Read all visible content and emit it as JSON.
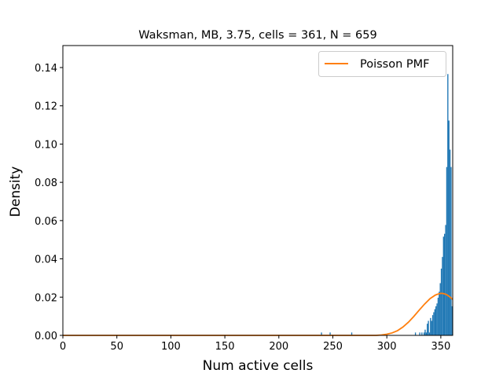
{
  "chart_data": {
    "type": "bar",
    "title": "Waksman, MB, 3.75, cells = 361, N = 659",
    "xlabel": "Num active cells",
    "ylabel": "Density",
    "xlim": [
      0,
      361
    ],
    "ylim": [
      0,
      0.1515
    ],
    "xticks": [
      0,
      50,
      100,
      150,
      200,
      250,
      300,
      350
    ],
    "yticks": [
      0.0,
      0.02,
      0.04,
      0.06,
      0.08,
      0.1,
      0.12,
      0.14
    ],
    "ytick_labels": [
      "0.00",
      "0.02",
      "0.04",
      "0.06",
      "0.08",
      "0.10",
      "0.12",
      "0.14"
    ],
    "legend": {
      "placement": "upper right",
      "entries": [
        "Poisson PMF"
      ]
    },
    "series": [
      {
        "kind": "histogram",
        "color": "#1f77b4",
        "bins": [
          {
            "x": 239,
            "value": 0.0015
          },
          {
            "x": 247,
            "value": 0.0015
          },
          {
            "x": 267,
            "value": 0.0015
          },
          {
            "x": 326,
            "value": 0.0015
          },
          {
            "x": 330,
            "value": 0.0015
          },
          {
            "x": 332,
            "value": 0.0015
          },
          {
            "x": 334,
            "value": 0.0015
          },
          {
            "x": 335,
            "value": 0.003
          },
          {
            "x": 336,
            "value": 0.0015
          },
          {
            "x": 337,
            "value": 0.0061
          },
          {
            "x": 338,
            "value": 0.0076
          },
          {
            "x": 339,
            "value": 0.0015
          },
          {
            "x": 340,
            "value": 0.0091
          },
          {
            "x": 341,
            "value": 0.0076
          },
          {
            "x": 342,
            "value": 0.0106
          },
          {
            "x": 343,
            "value": 0.0121
          },
          {
            "x": 344,
            "value": 0.0137
          },
          {
            "x": 345,
            "value": 0.0152
          },
          {
            "x": 346,
            "value": 0.0167
          },
          {
            "x": 347,
            "value": 0.0197
          },
          {
            "x": 348,
            "value": 0.0228
          },
          {
            "x": 349,
            "value": 0.0273
          },
          {
            "x": 350,
            "value": 0.0349
          },
          {
            "x": 351,
            "value": 0.041
          },
          {
            "x": 352,
            "value": 0.0516
          },
          {
            "x": 353,
            "value": 0.0531
          },
          {
            "x": 354,
            "value": 0.0577
          },
          {
            "x": 355,
            "value": 0.088
          },
          {
            "x": 356,
            "value": 0.1366
          },
          {
            "x": 357,
            "value": 0.1123
          },
          {
            "x": 358,
            "value": 0.0971
          },
          {
            "x": 359,
            "value": 0.088
          },
          {
            "x": 360,
            "value": 0.0152
          }
        ]
      },
      {
        "kind": "line",
        "name": "Poisson PMF",
        "color": "#ff7f0e",
        "points": [
          [
            0,
            0
          ],
          [
            290,
            0
          ],
          [
            295,
            0.0002
          ],
          [
            300,
            0.0006
          ],
          [
            305,
            0.0013
          ],
          [
            310,
            0.0025
          ],
          [
            315,
            0.0044
          ],
          [
            320,
            0.0069
          ],
          [
            325,
            0.0099
          ],
          [
            330,
            0.0132
          ],
          [
            335,
            0.0164
          ],
          [
            340,
            0.0192
          ],
          [
            345,
            0.0211
          ],
          [
            348,
            0.0217
          ],
          [
            350,
            0.022
          ],
          [
            352,
            0.0219
          ],
          [
            355,
            0.0214
          ],
          [
            358,
            0.0203
          ],
          [
            361,
            0.0188
          ]
        ]
      }
    ]
  }
}
